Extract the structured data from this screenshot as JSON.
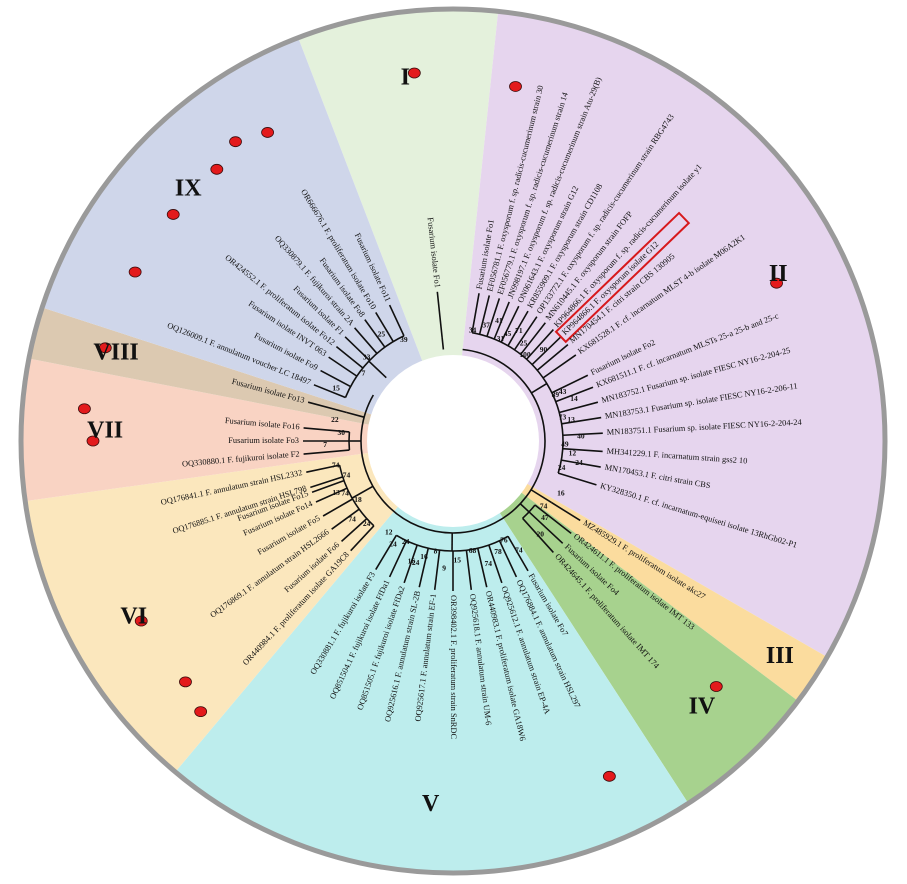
{
  "colors": {
    "I": "#e4f1dc",
    "II": "#e6d5ee",
    "III": "#fbdc9e",
    "IV": "#a7d28e",
    "V": "#bdeded",
    "VI": "#fbe7bd",
    "VII": "#f9d3c3",
    "VIII": "#dcc9b1",
    "IX": "#cfd6ea",
    "marker": "#e31a1c",
    "highlight_box": "#d7191c",
    "rim": "#9a9a9a"
  },
  "clades": [
    {
      "id": "I",
      "label": "I",
      "start": -21,
      "end": 6
    },
    {
      "id": "II",
      "label": "II",
      "start": 6,
      "end": 120
    },
    {
      "id": "III",
      "label": "III",
      "start": 120,
      "end": 127
    },
    {
      "id": "IV",
      "label": "IV",
      "start": 127,
      "end": 147
    },
    {
      "id": "V",
      "label": "V",
      "start": 147,
      "end": 220
    },
    {
      "id": "VI",
      "label": "VI",
      "start": 220,
      "end": 262
    },
    {
      "id": "VII",
      "label": "VII",
      "start": 262,
      "end": 281
    },
    {
      "id": "VIII",
      "label": "VIII",
      "start": 281,
      "end": 288
    },
    {
      "id": "IX",
      "label": "IX",
      "start": 288,
      "end": 339
    }
  ],
  "taxa": [
    {
      "label": "Fusarium isolate Fo1",
      "angle": 354,
      "clade": "I",
      "marker": true,
      "highlight": false
    },
    {
      "label": "Fusarium isolate Fo1",
      "angle": 10,
      "clade": "II",
      "marker": true,
      "highlight": false
    },
    {
      "label": "EF056781.1 F. oxysporum f. sp. radicis-cucumerinum strain 30",
      "angle": 14,
      "clade": "II",
      "marker": false,
      "highlight": false
    },
    {
      "label": "EF056779.1 F. oxysporum f. sp. radicis-cucumerinum strain 14",
      "angle": 18,
      "clade": "II",
      "marker": false,
      "highlight": false
    },
    {
      "label": "JN998197.1 F. oxysporum f. sp. radicis-cucumerinum strain Atu-29(B)",
      "angle": 22,
      "clade": "II",
      "marker": false,
      "highlight": false
    },
    {
      "label": "ON061643.1 F. oxysporum strain G12",
      "angle": 26,
      "clade": "II",
      "marker": false,
      "highlight": false
    },
    {
      "label": "KR855909.1 F. oxysporum strain CD1108",
      "angle": 30,
      "clade": "II",
      "marker": false,
      "highlight": false
    },
    {
      "label": "OP133772.1 F. oxysporum f. sp. radicis-cucumerinum strain RBG4743",
      "angle": 34,
      "clade": "II",
      "marker": false,
      "highlight": false
    },
    {
      "label": "MN610445.1 F. oxysporum strain FOFP",
      "angle": 38,
      "clade": "II",
      "marker": false,
      "highlight": false
    },
    {
      "label": "KP964866.1 F. oxysporum f. sp. radicis-cucumerinum isolate y1",
      "angle": 42,
      "clade": "II",
      "marker": false,
      "highlight": false
    },
    {
      "label": "KP964866.1 F. oxysporum isolate G12",
      "angle": 46,
      "clade": "II",
      "marker": false,
      "highlight": true
    },
    {
      "label": "MN170454.1 F. citri strain CBS 130905",
      "angle": 50,
      "clade": "II",
      "marker": false,
      "highlight": false
    },
    {
      "label": "KX681528.1 F. cf. incarnatum MLST 4-b isolate M06A2K1",
      "angle": 55,
      "clade": "II",
      "marker": false,
      "highlight": false
    },
    {
      "label": "Fusarium isolate Fo2",
      "angle": 64,
      "clade": "II",
      "marker": true,
      "highlight": false
    },
    {
      "label": "KX681511.1 F. cf. incarnatum MLSTs 25-a 25-b and 25-c",
      "angle": 69,
      "clade": "II",
      "marker": false,
      "highlight": false
    },
    {
      "label": "MN183752.1 Fusarium sp. isolate FIESC NY16-2-204-25",
      "angle": 75,
      "clade": "II",
      "marker": false,
      "highlight": false
    },
    {
      "label": "MN183753.1 Fusarium sp. isolate FIESC NY16-2-206-11",
      "angle": 81,
      "clade": "II",
      "marker": false,
      "highlight": false
    },
    {
      "label": "MN183751.1 Fusarium sp. isolate FIESC NY16-2-204-24",
      "angle": 87,
      "clade": "II",
      "marker": false,
      "highlight": false
    },
    {
      "label": "MH341229.1 F. incarnatum strain gss2 10",
      "angle": 94,
      "clade": "II",
      "marker": false,
      "highlight": false
    },
    {
      "label": "MN170453.1 F. citri strain CBS",
      "angle": 100,
      "clade": "II",
      "marker": false,
      "highlight": false
    },
    {
      "label": "KY328350.1 F. cf. incarnatum-equiseti isolate 13RhGb02-P1",
      "angle": 107,
      "clade": "II",
      "marker": false,
      "highlight": false
    },
    {
      "label": "MZ485929.1 F. proliferatum isolate akc27",
      "angle": 122,
      "clade": "III",
      "marker": false,
      "highlight": false
    },
    {
      "label": "OR424611.1 F. proliferatum isolate IMT 133",
      "angle": 128,
      "clade": "IV",
      "marker": false,
      "highlight": false
    },
    {
      "label": "Fusarium isolate Fo4",
      "angle": 133,
      "clade": "IV",
      "marker": true,
      "highlight": false
    },
    {
      "label": "OR424645.1 F. proliferatum isolate IMT 174",
      "angle": 138,
      "clade": "IV",
      "marker": false,
      "highlight": false
    },
    {
      "label": "Fusarium isolate Fo7",
      "angle": 150,
      "clade": "V",
      "marker": false,
      "highlight": false
    },
    {
      "label": "OQ176884.1 F. annulatum strain HSL297",
      "angle": 155,
      "clade": "V",
      "marker": true,
      "highlight": false
    },
    {
      "label": "OQ925612.1 F. annulatum strain EP-4A",
      "angle": 161,
      "clade": "V",
      "marker": false,
      "highlight": false
    },
    {
      "label": "OR440983.1 F. proliferatum isolate GA18W6",
      "angle": 167,
      "clade": "V",
      "marker": false,
      "highlight": false
    },
    {
      "label": "OQ925618.1 F. annulatum strain UM-6",
      "angle": 173,
      "clade": "V",
      "marker": false,
      "highlight": false
    },
    {
      "label": "OR398402.1 F. proliferatum strain SnRDC",
      "angle": 180,
      "clade": "V",
      "marker": false,
      "highlight": false
    },
    {
      "label": "OQ925617.1 F. annulatum strain EF-1",
      "angle": 187,
      "clade": "V",
      "marker": false,
      "highlight": false
    },
    {
      "label": "OQ925616.1 F. annulatum strain SL-2B",
      "angle": 193,
      "clade": "V",
      "marker": false,
      "highlight": false
    },
    {
      "label": "OQ851505.1 F. fujikuroi isolate FfDa2",
      "angle": 199,
      "clade": "V",
      "marker": false,
      "highlight": false
    },
    {
      "label": "OQ851504.1 F. fujikuroi isolate FfDa1",
      "angle": 205,
      "clade": "V",
      "marker": false,
      "highlight": false
    },
    {
      "label": "OQ330881.1 F. fujikuroi isolate F3",
      "angle": 211,
      "clade": "V",
      "marker": false,
      "highlight": false
    },
    {
      "label": "OR440984.1 F. proliferatum isolate GA19C8",
      "angle": 223,
      "clade": "VI",
      "marker": true,
      "highlight": false
    },
    {
      "label": "Fusarium isolate Fo6",
      "angle": 228,
      "clade": "VI",
      "marker": true,
      "highlight": false
    },
    {
      "label": "OQ176869.1 F. annulatum strain HSL2666",
      "angle": 234,
      "clade": "VI",
      "marker": false,
      "highlight": false
    },
    {
      "label": "Fusarium isolate Fo5",
      "angle": 240,
      "clade": "VI",
      "marker": true,
      "highlight": false
    },
    {
      "label": "Fusarium isolate Fo14",
      "angle": 246,
      "clade": "VI",
      "marker": false,
      "highlight": false
    },
    {
      "label": "OQ176885.1 F. annulatum strain HSL798",
      "angle": 252,
      "clade": "VI",
      "marker": false,
      "highlight": false
    },
    {
      "label": "OQ176841.1 F. annulatum strain HSL2332",
      "angle": 258,
      "clade": "VI",
      "marker": false,
      "highlight": false
    },
    {
      "label": "Fusarium isolate Fo15",
      "angle": 250,
      "clade": "VI",
      "marker": false,
      "highlight": false
    },
    {
      "label": "OQ330880.1 F. fujikuroi isolate F2",
      "angle": 265,
      "clade": "VII",
      "marker": false,
      "highlight": false
    },
    {
      "label": "Fusarium isolate Fo3",
      "angle": 270,
      "clade": "VII",
      "marker": true,
      "highlight": false
    },
    {
      "label": "Fusarium isolate Fo16",
      "angle": 275,
      "clade": "VII",
      "marker": true,
      "highlight": false
    },
    {
      "label": "Fusarium isolate Fo13",
      "angle": 285,
      "clade": "VIII",
      "marker": true,
      "highlight": false
    },
    {
      "label": "OQ126009.1 F. annulatum voucher LC 18497",
      "angle": 292,
      "clade": "IX",
      "marker": false,
      "highlight": false
    },
    {
      "label": "Fusarium isolate Fo9",
      "angle": 298,
      "clade": "IX",
      "marker": true,
      "highlight": false
    },
    {
      "label": "Fusarium isolate INVT 063",
      "angle": 304,
      "clade": "IX",
      "marker": false,
      "highlight": false
    },
    {
      "label": "OR424552.1 F. proliferatum isolate Fo12",
      "angle": 309,
      "clade": "IX",
      "marker": true,
      "highlight": false
    },
    {
      "label": "Fusarium isolate F1",
      "angle": 314,
      "clade": "IX",
      "marker": false,
      "highlight": false
    },
    {
      "label": "OQ330879.1 F. fujikuroi strain 2A",
      "angle": 319,
      "clade": "IX",
      "marker": true,
      "highlight": false
    },
    {
      "label": "Fusarium isolate Fo8",
      "angle": 324,
      "clade": "IX",
      "marker": true,
      "highlight": false
    },
    {
      "label": "OR666676.1 F. proliferatum isolate Fo10",
      "angle": 329,
      "clade": "IX",
      "marker": true,
      "highlight": false
    },
    {
      "label": "Fusarium isolate Fo11",
      "angle": 335,
      "clade": "IX",
      "marker": false,
      "highlight": false
    }
  ],
  "bootstraps": [
    {
      "value": "34",
      "angle": 10
    },
    {
      "value": "37",
      "angle": 16
    },
    {
      "value": "41",
      "angle": 21
    },
    {
      "value": "31",
      "angle": 25
    },
    {
      "value": "45",
      "angle": 27
    },
    {
      "value": "71",
      "angle": 31
    },
    {
      "value": "100",
      "angle": 40
    },
    {
      "value": "25",
      "angle": 36
    },
    {
      "value": "90",
      "angle": 45
    },
    {
      "value": "89",
      "angle": 66
    },
    {
      "value": "43",
      "angle": 66
    },
    {
      "value": "14",
      "angle": 71
    },
    {
      "value": "73",
      "angle": 78
    },
    {
      "value": "13",
      "angle": 80
    },
    {
      "value": "40",
      "angle": 88
    },
    {
      "value": "49",
      "angle": 92
    },
    {
      "value": "12",
      "angle": 96
    },
    {
      "value": "24",
      "angle": 100
    },
    {
      "value": "24",
      "angle": 104
    },
    {
      "value": "16",
      "angle": 116
    },
    {
      "value": "20",
      "angle": 137
    },
    {
      "value": "74",
      "angle": 126
    },
    {
      "value": "47",
      "angle": 130
    },
    {
      "value": "74",
      "angle": 149
    },
    {
      "value": "76",
      "angle": 153
    },
    {
      "value": "78",
      "angle": 158
    },
    {
      "value": "74",
      "angle": 164
    },
    {
      "value": "68",
      "angle": 170
    },
    {
      "value": "15",
      "angle": 178
    },
    {
      "value": "9",
      "angle": 184
    },
    {
      "value": "8",
      "angle": 189
    },
    {
      "value": "16",
      "angle": 194
    },
    {
      "value": "16",
      "angle": 199
    },
    {
      "value": "24",
      "angle": 205
    },
    {
      "value": "24",
      "angle": 210
    },
    {
      "value": "24",
      "angle": 197
    },
    {
      "value": "12",
      "angle": 215
    },
    {
      "value": "24",
      "angle": 226
    },
    {
      "value": "74",
      "angle": 232
    },
    {
      "value": "18",
      "angle": 238
    },
    {
      "value": "74",
      "angle": 244
    },
    {
      "value": "13",
      "angle": 246
    },
    {
      "value": "74",
      "angle": 252
    },
    {
      "value": "74",
      "angle": 258
    },
    {
      "value": "7",
      "angle": 268
    },
    {
      "value": "30",
      "angle": 274
    },
    {
      "value": "22",
      "angle": 280
    },
    {
      "value": "15",
      "angle": 294
    },
    {
      "value": "7",
      "angle": 307
    },
    {
      "value": "33",
      "angle": 314
    },
    {
      "value": "25",
      "angle": 326
    },
    {
      "value": "39",
      "angle": 334
    }
  ]
}
